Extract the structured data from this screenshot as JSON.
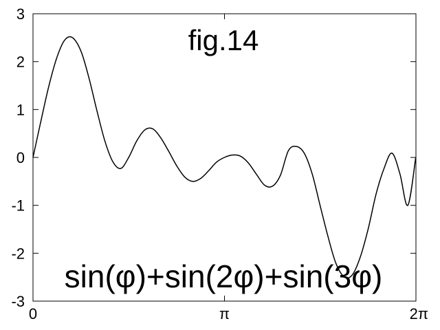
{
  "chart_data": {
    "type": "line",
    "title": "fig.14",
    "annotation": "sin(φ)+sin(2φ)+sin(3φ)",
    "xlabel": "",
    "ylabel": "",
    "xlim": [
      0,
      6.283185307
    ],
    "ylim": [
      -3,
      3
    ],
    "grid": false,
    "x_ticks": [
      {
        "value": 0,
        "label": "0"
      },
      {
        "value": 3.141592654,
        "label": "π"
      },
      {
        "value": 6.283185307,
        "label": "2π"
      }
    ],
    "y_ticks": [
      {
        "value": 3,
        "label": "3"
      },
      {
        "value": 2,
        "label": "2"
      },
      {
        "value": 1,
        "label": "1"
      },
      {
        "value": 0,
        "label": "0"
      },
      {
        "value": -1,
        "label": "-1"
      },
      {
        "value": -2,
        "label": "-2"
      },
      {
        "value": -3,
        "label": "-3"
      }
    ],
    "series": [
      {
        "color": "#000000",
        "x": [
          0.0,
          0.13,
          0.26,
          0.39,
          0.52,
          0.65,
          0.79,
          0.92,
          1.05,
          1.18,
          1.31,
          1.44,
          1.57,
          1.7,
          1.83,
          1.96,
          2.09,
          2.23,
          2.36,
          2.49,
          2.62,
          2.75,
          2.88,
          3.01,
          3.14,
          3.27,
          3.4,
          3.53,
          3.67,
          3.8,
          3.93,
          4.06,
          4.19,
          4.32,
          4.45,
          4.58,
          4.71,
          4.84,
          4.97,
          5.11,
          5.24,
          5.37,
          5.5,
          5.63,
          5.76,
          5.89,
          6.02,
          6.15,
          6.28
        ],
        "y": [
          0.0,
          0.76,
          1.49,
          2.08,
          2.45,
          2.5,
          2.21,
          1.65,
          0.97,
          0.34,
          -0.09,
          -0.23,
          0.0,
          0.34,
          0.57,
          0.6,
          0.42,
          0.12,
          -0.18,
          -0.41,
          -0.5,
          -0.44,
          -0.28,
          -0.1,
          0.0,
          0.05,
          0.03,
          -0.11,
          -0.36,
          -0.58,
          -0.6,
          -0.37,
          0.14,
          0.23,
          0.09,
          -0.34,
          -1.0,
          -1.65,
          -2.21,
          -2.5,
          -2.45,
          -2.08,
          -1.49,
          -0.76,
          -0.23,
          0.09,
          -0.34,
          -1.0,
          0.0
        ]
      }
    ]
  }
}
